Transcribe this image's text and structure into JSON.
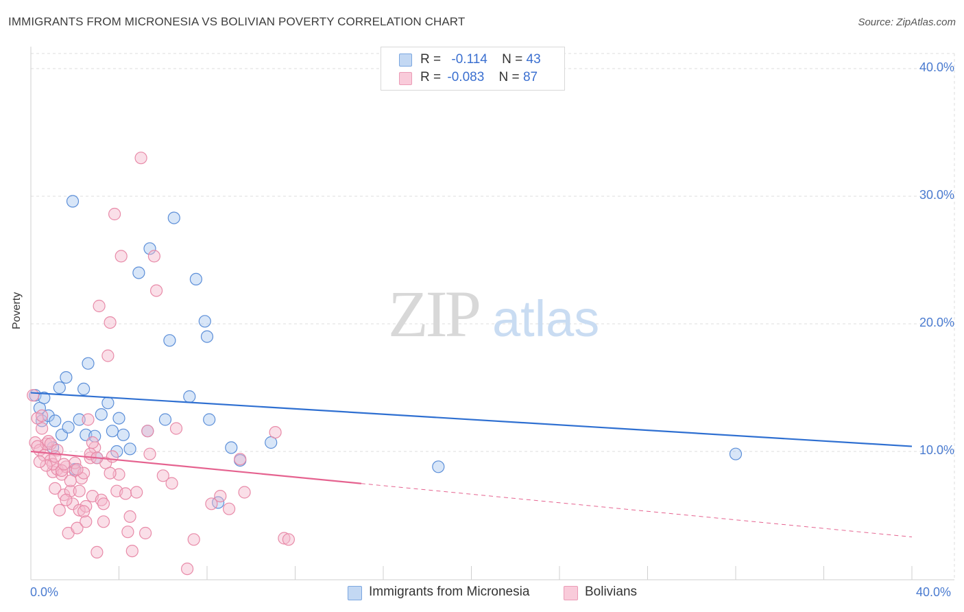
{
  "header": {
    "title": "IMMIGRANTS FROM MICRONESIA VS BOLIVIAN POVERTY CORRELATION CHART",
    "source": "Source: ZipAtlas.com"
  },
  "watermark": {
    "zip": "ZIP",
    "atlas": "atlas"
  },
  "legend": {
    "rows": [
      {
        "r_label": "R =",
        "r_value": "-0.114",
        "n_label": "N =",
        "n_value": "43",
        "color": "#a9c8f0"
      },
      {
        "r_label": "R =",
        "r_value": "-0.083",
        "n_label": "N =",
        "n_value": "87",
        "color": "#f5b8cb"
      }
    ]
  },
  "bottom_legend": {
    "items": [
      {
        "label": "Immigrants from Micronesia",
        "color": "#a9c8f0"
      },
      {
        "label": "Bolivians",
        "color": "#f5b8cb"
      }
    ]
  },
  "chart_data": {
    "type": "scatter",
    "xlabel": "",
    "ylabel": "Poverty",
    "xlim": [
      0,
      40
    ],
    "ylim": [
      0,
      40
    ],
    "x_tick_labels": [
      "0.0%",
      "40.0%"
    ],
    "y_tick_labels": [
      "10.0%",
      "20.0%",
      "30.0%",
      "40.0%"
    ],
    "y_ticks": [
      10,
      20,
      30,
      40
    ],
    "grid": true,
    "legend_position": "top-center",
    "series": [
      {
        "name": "Immigrants from Micronesia",
        "color": "#5b8ed8",
        "fill": "#a9c8f0",
        "trend": {
          "x": [
            0,
            40
          ],
          "y": [
            14.6,
            10.4
          ],
          "dashed_from": null,
          "line_color": "#2e6fd1"
        },
        "points": [
          [
            0.2,
            14.4
          ],
          [
            0.4,
            13.4
          ],
          [
            0.5,
            12.4
          ],
          [
            0.6,
            14.2
          ],
          [
            0.8,
            12.8
          ],
          [
            1.0,
            10.3
          ],
          [
            1.1,
            12.4
          ],
          [
            1.3,
            15.0
          ],
          [
            1.4,
            11.3
          ],
          [
            1.6,
            15.8
          ],
          [
            1.7,
            11.9
          ],
          [
            2.0,
            8.6
          ],
          [
            2.2,
            12.5
          ],
          [
            2.4,
            14.9
          ],
          [
            2.5,
            11.3
          ],
          [
            2.6,
            16.9
          ],
          [
            2.9,
            11.2
          ],
          [
            3.0,
            9.5
          ],
          [
            3.2,
            12.9
          ],
          [
            3.5,
            13.8
          ],
          [
            3.7,
            11.6
          ],
          [
            3.9,
            10.0
          ],
          [
            4.0,
            12.6
          ],
          [
            4.2,
            11.3
          ],
          [
            4.5,
            10.2
          ],
          [
            4.9,
            24.0
          ],
          [
            5.3,
            11.6
          ],
          [
            5.4,
            25.9
          ],
          [
            6.1,
            12.5
          ],
          [
            6.3,
            18.7
          ],
          [
            6.5,
            28.3
          ],
          [
            7.2,
            14.3
          ],
          [
            7.5,
            23.5
          ],
          [
            7.9,
            20.2
          ],
          [
            8.0,
            19.0
          ],
          [
            8.1,
            12.5
          ],
          [
            8.5,
            6.0
          ],
          [
            9.1,
            10.3
          ],
          [
            9.5,
            9.3
          ],
          [
            10.9,
            10.7
          ],
          [
            1.9,
            29.6
          ],
          [
            18.5,
            8.8
          ],
          [
            32.0,
            9.8
          ]
        ]
      },
      {
        "name": "Bolivians",
        "color": "#e88aa8",
        "fill": "#f5b8cb",
        "trend": {
          "x": [
            0,
            40
          ],
          "y": [
            10.0,
            3.3
          ],
          "dashed_from": 15.0,
          "line_color": "#e5628f"
        },
        "points": [
          [
            0.1,
            14.4
          ],
          [
            0.2,
            10.7
          ],
          [
            0.3,
            12.6
          ],
          [
            0.4,
            10.1
          ],
          [
            0.5,
            11.8
          ],
          [
            0.6,
            9.7
          ],
          [
            0.7,
            10.6
          ],
          [
            0.8,
            10.8
          ],
          [
            0.9,
            9.3
          ],
          [
            1.0,
            8.4
          ],
          [
            1.1,
            7.1
          ],
          [
            1.2,
            8.6
          ],
          [
            1.3,
            5.4
          ],
          [
            1.4,
            8.2
          ],
          [
            1.5,
            6.6
          ],
          [
            1.6,
            8.8
          ],
          [
            1.7,
            3.6
          ],
          [
            1.8,
            6.9
          ],
          [
            1.9,
            5.9
          ],
          [
            2.0,
            8.5
          ],
          [
            2.1,
            4.0
          ],
          [
            2.2,
            5.4
          ],
          [
            2.3,
            7.9
          ],
          [
            2.4,
            8.3
          ],
          [
            2.5,
            5.7
          ],
          [
            2.6,
            12.5
          ],
          [
            2.7,
            9.5
          ],
          [
            2.8,
            6.5
          ],
          [
            2.9,
            10.3
          ],
          [
            3.0,
            2.1
          ],
          [
            3.1,
            21.4
          ],
          [
            3.2,
            6.2
          ],
          [
            3.3,
            4.5
          ],
          [
            3.4,
            9.1
          ],
          [
            3.6,
            20.1
          ],
          [
            3.5,
            17.5
          ],
          [
            3.7,
            9.6
          ],
          [
            3.8,
            28.6
          ],
          [
            3.9,
            6.9
          ],
          [
            4.0,
            8.2
          ],
          [
            4.1,
            25.3
          ],
          [
            4.3,
            6.7
          ],
          [
            4.5,
            4.9
          ],
          [
            4.6,
            2.2
          ],
          [
            4.8,
            6.8
          ],
          [
            5.0,
            33.0
          ],
          [
            5.2,
            3.6
          ],
          [
            5.4,
            9.8
          ],
          [
            5.6,
            25.3
          ],
          [
            5.7,
            22.6
          ],
          [
            6.0,
            8.1
          ],
          [
            6.4,
            7.5
          ],
          [
            6.6,
            11.8
          ],
          [
            7.1,
            0.8
          ],
          [
            7.4,
            3.1
          ],
          [
            8.2,
            5.9
          ],
          [
            8.6,
            6.5
          ],
          [
            9.0,
            5.5
          ],
          [
            9.5,
            9.4
          ],
          [
            9.7,
            6.8
          ],
          [
            11.1,
            11.5
          ],
          [
            11.5,
            3.2
          ],
          [
            0.3,
            10.4
          ],
          [
            0.5,
            12.8
          ],
          [
            0.9,
            10.6
          ],
          [
            1.0,
            9.0
          ],
          [
            1.2,
            10.1
          ],
          [
            1.4,
            8.5
          ],
          [
            1.6,
            6.2
          ],
          [
            1.8,
            7.7
          ],
          [
            2.0,
            9.1
          ],
          [
            2.2,
            6.9
          ],
          [
            2.4,
            5.3
          ],
          [
            2.7,
            9.8
          ],
          [
            3.0,
            9.5
          ],
          [
            3.3,
            5.9
          ],
          [
            0.7,
            8.9
          ],
          [
            1.5,
            9.0
          ],
          [
            2.1,
            8.6
          ],
          [
            2.8,
            10.7
          ],
          [
            5.3,
            11.6
          ],
          [
            11.7,
            3.1
          ],
          [
            4.4,
            3.7
          ],
          [
            0.4,
            9.2
          ],
          [
            1.1,
            9.6
          ],
          [
            2.5,
            4.5
          ],
          [
            3.6,
            8.3
          ]
        ]
      }
    ]
  }
}
